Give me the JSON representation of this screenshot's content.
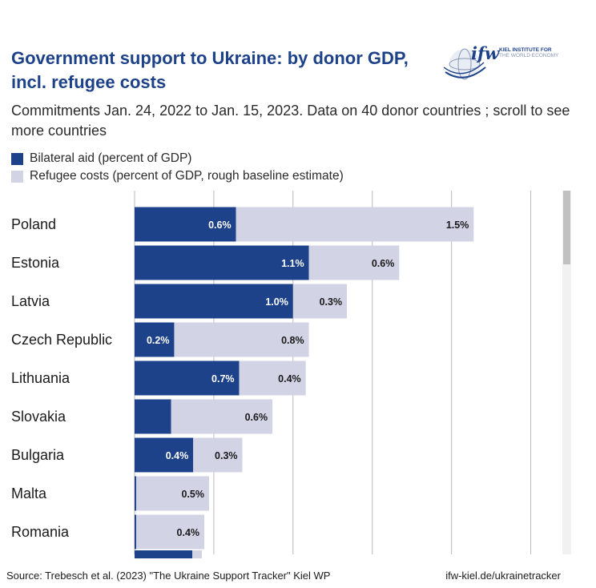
{
  "header": {
    "title": "Government support to Ukraine: by donor GDP, incl. refugee costs",
    "subtitle": "Commitments Jan. 24, 2022 to Jan. 15, 2023. Data on 40 donor countries ; scroll to see more countries"
  },
  "logo": {
    "mark": "ifw",
    "line1": "KIEL INSTITUTE FOR",
    "line2": "THE WORLD ECONOMY"
  },
  "legend": [
    {
      "label": "Bilateral aid (percent of GDP)",
      "color": "#1d4289"
    },
    {
      "label": "Refugee costs (percent of GDP, rough baseline estimate)",
      "color": "#d3d3e6"
    }
  ],
  "colors": {
    "bilateral": "#1d4289",
    "refugee": "#d3d3e6",
    "grid": "#b9b9b9"
  },
  "chart_data": {
    "type": "bar",
    "orientation": "horizontal",
    "stacked": true,
    "categories": [
      "Poland",
      "Estonia",
      "Latvia",
      "Czech Republic",
      "Lithuania",
      "Slovakia",
      "Bulgaria",
      "Malta",
      "Romania"
    ],
    "series": [
      {
        "name": "Bilateral aid (percent of GDP)",
        "values": [
          0.64,
          1.1,
          1.0,
          0.25,
          0.66,
          0.23,
          0.37,
          0.01,
          0.01
        ],
        "labels": [
          "0.6%",
          "1.1%",
          "1.0%",
          "0.2%",
          "0.7%",
          "",
          "0.4%",
          "",
          ""
        ]
      },
      {
        "name": "Refugee costs (percent of GDP, rough baseline estimate)",
        "values": [
          1.5,
          0.57,
          0.34,
          0.85,
          0.42,
          0.64,
          0.31,
          0.46,
          0.43
        ],
        "labels": [
          "1.5%",
          "0.6%",
          "0.3%",
          "0.8%",
          "0.4%",
          "0.6%",
          "0.3%",
          "0.5%",
          "0.4%"
        ]
      }
    ],
    "xlim": [
      0,
      2.75
    ],
    "grid": true,
    "legend_position": "top"
  },
  "footer": {
    "source": "Source: Trebesch et al. (2023) \"The Ukraine Support Tracker\" Kiel WP",
    "link": "ifw-kiel.de/ukrainetracker"
  }
}
